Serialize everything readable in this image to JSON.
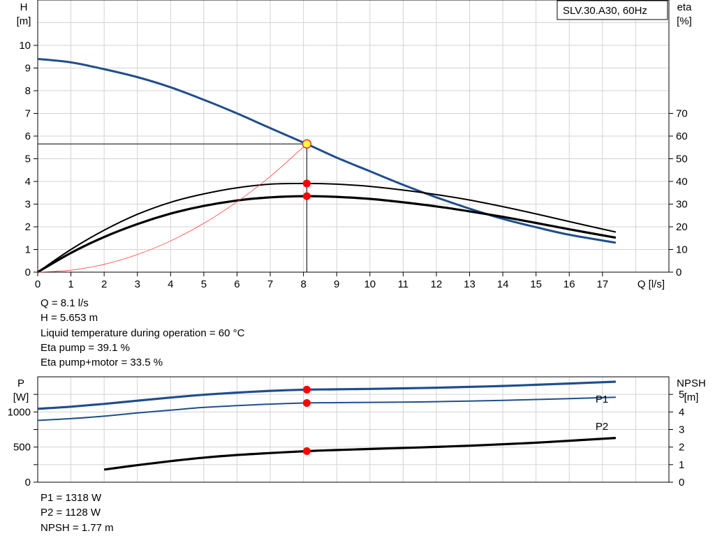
{
  "pump_label": "SLV.30.A30, 60Hz",
  "colors": {
    "grid": "#d3d3d3",
    "head_curve": "#1f4e8c",
    "power_curve": "#1f4e8c",
    "efficiency_curve": "#000000",
    "system_curve": "#ff4040",
    "duty_point": "#ff0000",
    "duty_head_point": "#ffff40"
  },
  "head_chart_readout": [
    "Q = 8.1 l/s",
    "H = 5.653 m",
    "Liquid temperature during operation = 60 °C",
    "Eta pump = 39.1 %",
    "Eta pump+motor = 33.5 %"
  ],
  "power_chart_readout": [
    "P1 = 1318 W",
    "P2 = 1128 W",
    "NPSH = 1.77 m"
  ],
  "chart_data": [
    {
      "type": "line",
      "ylabel": "H\n[m]",
      "y2label": "eta\n[%]",
      "xlabel": "Q [l/s]",
      "xlim": [
        0,
        19
      ],
      "ylim": [
        0,
        12
      ],
      "y2lim": [
        0,
        120
      ],
      "x_ticks": [
        0,
        1,
        2,
        3,
        4,
        5,
        6,
        7,
        8,
        9,
        10,
        11,
        12,
        13,
        14,
        15,
        16,
        17
      ],
      "y_ticks": [
        0,
        1,
        2,
        3,
        4,
        5,
        6,
        7,
        8,
        9,
        10
      ],
      "y2_ticks": [
        0,
        10,
        20,
        30,
        40,
        50,
        60,
        70
      ],
      "grid": true,
      "legend": "top-right",
      "series": [
        {
          "key": "head",
          "axis": "left",
          "x": [
            0,
            1,
            2,
            3,
            4,
            5,
            6,
            7,
            8.1,
            9,
            10,
            11,
            12,
            13,
            14,
            15,
            16,
            17.4
          ],
          "values": [
            9.4,
            9.25,
            8.95,
            8.6,
            8.15,
            7.6,
            7.0,
            6.35,
            5.65,
            5.05,
            4.45,
            3.85,
            3.3,
            2.8,
            2.35,
            1.98,
            1.65,
            1.3
          ]
        },
        {
          "key": "eta_pump",
          "axis": "right",
          "x": [
            0,
            1,
            2,
            3,
            4,
            5,
            6,
            7,
            8.1,
            9,
            10,
            11,
            12,
            13,
            14,
            15,
            16,
            17.4
          ],
          "values": [
            0,
            10,
            18.5,
            25.5,
            30.8,
            34.5,
            37.2,
            38.8,
            39.1,
            38.8,
            37.8,
            36.2,
            34.2,
            31.8,
            28.9,
            25.7,
            22.3,
            17.7
          ]
        },
        {
          "key": "eta_pump_motor",
          "axis": "right",
          "x": [
            0,
            1,
            2,
            3,
            4,
            5,
            6,
            7,
            8.1,
            9,
            10,
            11,
            12,
            13,
            14,
            15,
            16,
            17.4
          ],
          "values": [
            0,
            8.5,
            15.5,
            21.2,
            25.8,
            29.2,
            31.6,
            33.0,
            33.5,
            33.2,
            32.3,
            30.8,
            29.0,
            26.8,
            24.4,
            21.7,
            18.9,
            15.2
          ]
        },
        {
          "key": "system_curve",
          "axis": "left",
          "x": [
            0,
            1,
            2,
            3,
            4,
            5,
            6,
            7,
            8.1
          ],
          "values": [
            0,
            0.086,
            0.345,
            0.776,
            1.378,
            2.154,
            3.102,
            4.222,
            5.653
          ]
        }
      ],
      "duty_points": [
        {
          "x": 8.1,
          "value": 5.653,
          "axis": "left"
        },
        {
          "x": 8.1,
          "value": 39.1,
          "axis": "right"
        },
        {
          "x": 8.1,
          "value": 33.5,
          "axis": "right"
        }
      ]
    },
    {
      "type": "line",
      "ylabel": "P\n[W]",
      "y2label": "NPSH\n[m]",
      "xlim": [
        0,
        19
      ],
      "ylim": [
        0,
        1500
      ],
      "y2lim": [
        0,
        6
      ],
      "y_ticks": [
        0,
        500,
        1000
      ],
      "y2_ticks": [
        0,
        1,
        2,
        3,
        4,
        5
      ],
      "grid": true,
      "series": [
        {
          "name": "P1",
          "axis": "left",
          "x": [
            0,
            1,
            2,
            3,
            4,
            5,
            6,
            7,
            8.1,
            9,
            10,
            11,
            12,
            13,
            14,
            15,
            16,
            17.4
          ],
          "values": [
            1045,
            1075,
            1115,
            1160,
            1205,
            1245,
            1275,
            1300,
            1318,
            1322,
            1328,
            1336,
            1345,
            1357,
            1370,
            1387,
            1405,
            1430
          ]
        },
        {
          "name": "P2",
          "axis": "left",
          "x": [
            0,
            1,
            2,
            3,
            4,
            5,
            6,
            7,
            8.1,
            9,
            10,
            11,
            12,
            13,
            14,
            15,
            16,
            17.4
          ],
          "values": [
            880,
            905,
            940,
            985,
            1025,
            1065,
            1090,
            1112,
            1128,
            1132,
            1136,
            1140,
            1146,
            1155,
            1165,
            1177,
            1190,
            1210
          ]
        },
        {
          "key": "npsh",
          "axis": "right",
          "x": [
            2,
            3,
            4,
            5,
            6,
            7,
            8.1,
            9,
            10,
            11,
            12,
            13,
            14,
            15,
            16,
            17.4
          ],
          "values": [
            0.72,
            0.97,
            1.2,
            1.4,
            1.55,
            1.66,
            1.77,
            1.83,
            1.89,
            1.95,
            2.01,
            2.08,
            2.16,
            2.25,
            2.36,
            2.52
          ]
        }
      ],
      "duty_points": [
        {
          "x": 8.1,
          "value": 1318,
          "axis": "left"
        },
        {
          "x": 8.1,
          "value": 1128,
          "axis": "left"
        },
        {
          "x": 8.1,
          "value": 1.77,
          "axis": "right"
        }
      ]
    }
  ]
}
